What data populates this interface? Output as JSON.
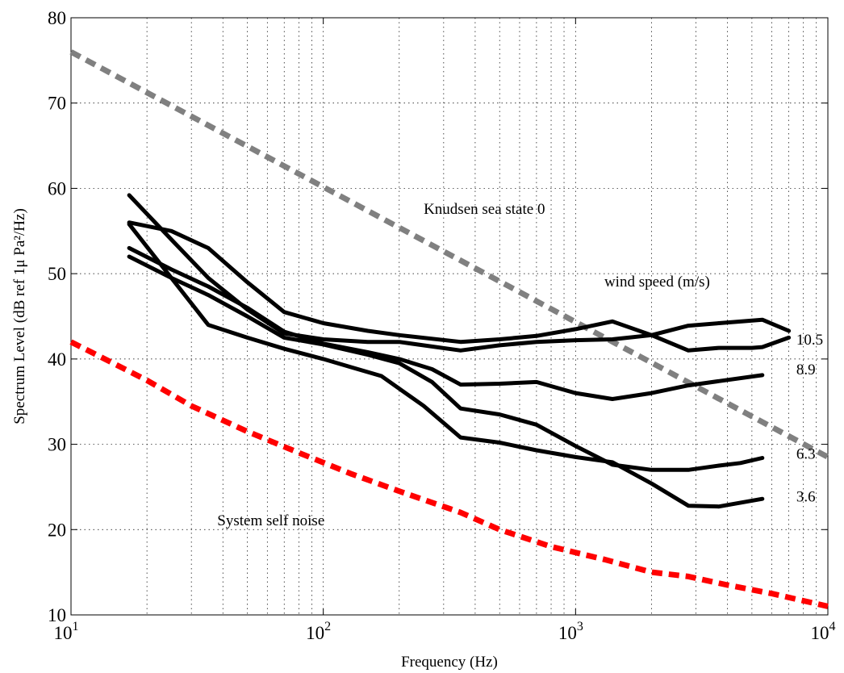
{
  "chart_data": {
    "type": "line",
    "xlabel": "Frequency (Hz)",
    "ylabel": "Spectrum Level (dB ref 1μ Pa²/Hz)",
    "xscale": "log",
    "xlim": [
      10,
      10000
    ],
    "ylim": [
      10,
      80
    ],
    "grid": true,
    "x_ticks": [
      {
        "value": 10,
        "base": "10",
        "exp": "1"
      },
      {
        "value": 100,
        "base": "10",
        "exp": "2"
      },
      {
        "value": 1000,
        "base": "10",
        "exp": "3"
      },
      {
        "value": 10000,
        "base": "10",
        "exp": "4"
      }
    ],
    "y_ticks": [
      10,
      20,
      30,
      40,
      50,
      60,
      70,
      80
    ],
    "series": [
      {
        "style": "dashed",
        "color": "#808080",
        "x": [
          10,
          10000
        ],
        "y": [
          76,
          28.5
        ]
      },
      {
        "style": "dashed",
        "color": "#ff0000",
        "x": [
          10,
          20,
          30,
          50,
          80,
          130,
          200,
          350,
          500,
          800,
          1300,
          2000,
          2800,
          4000,
          6000,
          10000
        ],
        "y": [
          42,
          37.5,
          34.5,
          31.5,
          29,
          26.5,
          24.5,
          22,
          20,
          18,
          16.5,
          15,
          14.5,
          13.5,
          12.5,
          11
        ]
      },
      {
        "style": "solid",
        "color": "#000000",
        "x": [
          17,
          25,
          35,
          50,
          70,
          100,
          150,
          200,
          350,
          500,
          700,
          1000,
          1400,
          2000,
          2800,
          3700,
          5000,
          5500,
          7000
        ],
        "y": [
          56,
          55,
          53,
          49,
          45.5,
          44.2,
          43.3,
          42.8,
          42.0,
          42.3,
          42.7,
          43.5,
          44.4,
          42.8,
          41.0,
          41.3,
          41.3,
          41.4,
          42.5
        ]
      },
      {
        "style": "solid",
        "color": "#000000",
        "x": [
          17,
          25,
          35,
          50,
          70,
          100,
          150,
          200,
          350,
          500,
          700,
          1000,
          1400,
          2000,
          2800,
          3700,
          5500,
          7000
        ],
        "y": [
          59.2,
          54,
          49.5,
          45.8,
          43.0,
          42.3,
          42.0,
          42.0,
          41.0,
          41.6,
          42.0,
          42.2,
          42.3,
          42.8,
          43.9,
          44.2,
          44.6,
          43.3
        ]
      },
      {
        "style": "solid",
        "color": "#000000",
        "x": [
          17,
          25,
          35,
          50,
          70,
          100,
          150,
          200,
          270,
          350,
          500,
          700,
          1000,
          1400,
          2000,
          2800,
          3700,
          5500
        ],
        "y": [
          53,
          50.5,
          48.5,
          46,
          43.2,
          41.8,
          40.8,
          40.0,
          38.8,
          37.0,
          37.1,
          37.3,
          36.0,
          35.3,
          36.0,
          36.9,
          37.4,
          38.1
        ]
      },
      {
        "style": "solid",
        "color": "#000000",
        "x": [
          17,
          25,
          35,
          50,
          70,
          100,
          150,
          200,
          270,
          350,
          500,
          700,
          1000,
          1400,
          2000,
          2800,
          3700,
          4500,
          5500
        ],
        "y": [
          52,
          49.5,
          47.5,
          45,
          42.5,
          41.7,
          40.5,
          39.5,
          37.3,
          34.2,
          33.5,
          32.3,
          29.8,
          27.6,
          27.0,
          27.0,
          27.5,
          27.8,
          28.4
        ]
      },
      {
        "style": "solid",
        "color": "#000000",
        "x": [
          17,
          25,
          35,
          50,
          70,
          100,
          130,
          170,
          250,
          350,
          500,
          700,
          1000,
          1400,
          2000,
          2800,
          3700,
          5500
        ],
        "y": [
          55.8,
          49.5,
          44.0,
          42.5,
          41.2,
          40.0,
          39.0,
          38.0,
          34.5,
          30.8,
          30.2,
          29.3,
          28.5,
          27.9,
          25.4,
          22.8,
          22.7,
          23.6
        ]
      }
    ],
    "annotations": [
      {
        "text": "Knudsen sea state 0",
        "x": 250,
        "y": 57
      },
      {
        "text": "wind speed (m/s)",
        "x": 1300,
        "y": 48.5
      },
      {
        "text": "10.5",
        "x": 7500,
        "y": 41.7
      },
      {
        "text": "8.9",
        "x": 7500,
        "y": 38.2
      },
      {
        "text": "6.3",
        "x": 7500,
        "y": 28.3
      },
      {
        "text": "3.6",
        "x": 7500,
        "y": 23.3
      },
      {
        "text": "System self noise",
        "x": 38,
        "y": 20.5
      }
    ]
  }
}
